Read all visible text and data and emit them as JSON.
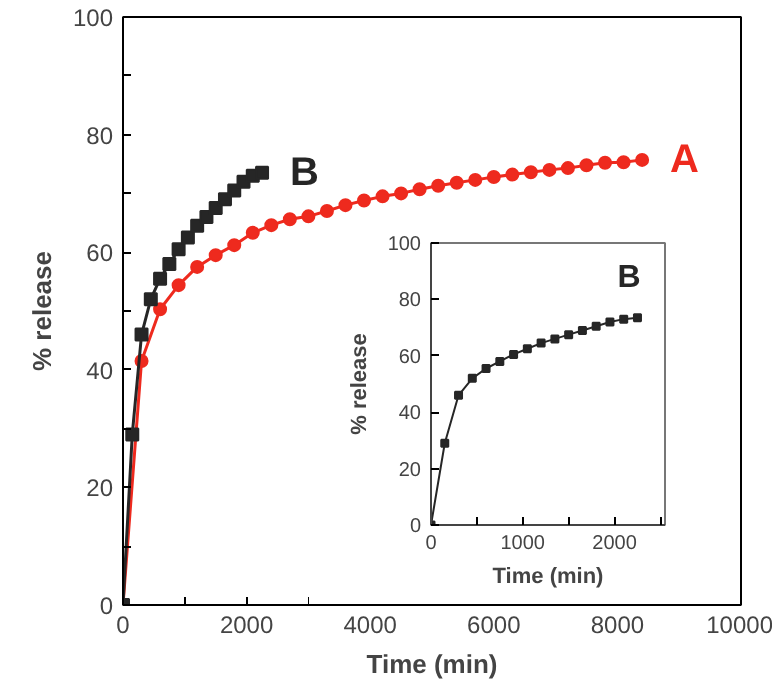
{
  "chart_data": [
    {
      "type": "line",
      "xlabel": "Time (min)",
      "ylabel": "% release",
      "xlim": [
        0,
        10000
      ],
      "ylim": [
        0,
        100
      ],
      "xticks": [
        0,
        {
          "value": 1000,
          "label": null
        },
        2000,
        {
          "value": 3000,
          "label": null
        },
        4000,
        {
          "value": 5000,
          "label": null
        },
        6000,
        {
          "value": 7000,
          "label": null
        },
        8000,
        {
          "value": 9000,
          "label": null
        },
        10000
      ],
      "yticks": [
        0,
        {
          "value": 10,
          "label": null
        },
        20,
        {
          "value": 30,
          "label": null
        },
        40,
        {
          "value": 50,
          "label": null
        },
        60,
        {
          "value": 70,
          "label": null
        },
        80,
        {
          "value": 90,
          "label": null
        },
        100
      ],
      "grid": false,
      "series": [
        {
          "name": "A",
          "color": "#ee2a1e",
          "marker": "circle",
          "x": [
            0,
            300,
            600,
            900,
            1200,
            1500,
            1800,
            2100,
            2400,
            2700,
            3000,
            3300,
            3600,
            3900,
            4200,
            4500,
            4800,
            5100,
            5400,
            5700,
            6000,
            6300,
            6600,
            6900,
            7200,
            7500,
            7800,
            8100,
            8400
          ],
          "values": [
            0,
            41.5,
            50.3,
            54.4,
            57.5,
            59.5,
            61.2,
            63.3,
            64.6,
            65.6,
            66.1,
            67,
            68,
            68.8,
            69.5,
            70,
            70.7,
            71.3,
            71.8,
            72.3,
            72.8,
            73.2,
            73.6,
            74,
            74.3,
            74.8,
            75.2,
            75.3,
            75.7
          ]
        },
        {
          "name": "B",
          "color": "#262626",
          "marker": "square",
          "x": [
            0,
            150,
            300,
            450,
            600,
            750,
            900,
            1050,
            1200,
            1350,
            1500,
            1650,
            1800,
            1950,
            2100,
            2250
          ],
          "values": [
            0,
            29,
            46,
            52,
            55.5,
            58,
            60.5,
            62.5,
            64.5,
            66,
            67.5,
            69,
            70.5,
            72,
            73,
            73.5
          ]
        }
      ]
    },
    {
      "type": "line",
      "xlabel": "Time (min)",
      "ylabel": "% release",
      "xlim": [
        0,
        2550
      ],
      "ylim": [
        0,
        100
      ],
      "xticks": [
        0,
        {
          "value": 500,
          "label": null
        },
        1000,
        {
          "value": 1500,
          "label": null
        },
        2000,
        {
          "value": 2500,
          "label": null
        }
      ],
      "yticks": [
        0,
        20,
        40,
        60,
        80,
        100
      ],
      "grid": false,
      "series": [
        {
          "name": "B",
          "color": "#262626",
          "marker": "square",
          "x": [
            0,
            150,
            300,
            450,
            600,
            750,
            900,
            1050,
            1200,
            1350,
            1500,
            1650,
            1800,
            1950,
            2100,
            2250
          ],
          "values": [
            0,
            29,
            46,
            52,
            55.5,
            58,
            60.5,
            62.5,
            64.5,
            66,
            67.5,
            69,
            70.5,
            72,
            73,
            73.5
          ]
        }
      ]
    }
  ]
}
